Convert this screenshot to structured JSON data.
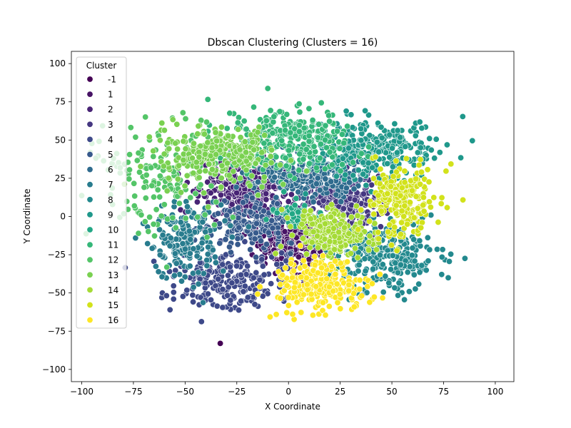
{
  "chart_data": {
    "type": "scatter",
    "title": "Dbscan Clustering (Clusters = 16)",
    "xlabel": "X Coordinate",
    "ylabel": "Y Coordinate",
    "xlim": [
      -105,
      109
    ],
    "ylim": [
      -108,
      108
    ],
    "xticks": [
      -100,
      -75,
      -50,
      -25,
      0,
      25,
      50,
      75,
      100
    ],
    "yticks": [
      -100,
      -75,
      -50,
      -25,
      0,
      25,
      50,
      75,
      100
    ],
    "grid": false,
    "legend": {
      "title": "Cluster",
      "placement": "top-left"
    },
    "series": [
      {
        "name": "-1",
        "color": "#440154",
        "approx_center": [
          -33,
          -83
        ],
        "approx_spread": [
          1,
          1
        ],
        "approx_count": 1
      },
      {
        "name": "1",
        "color": "#471365",
        "approx_center": [
          0,
          -18
        ],
        "approx_spread": [
          8,
          7
        ],
        "approx_count": 220
      },
      {
        "name": "2",
        "color": "#482475",
        "approx_center": [
          -20,
          17
        ],
        "approx_spread": [
          11,
          9
        ],
        "approx_count": 300
      },
      {
        "name": "3",
        "color": "#453781",
        "approx_center": [
          28,
          12
        ],
        "approx_spread": [
          12,
          10
        ],
        "approx_count": 260
      },
      {
        "name": "4",
        "color": "#3e4989",
        "approx_center": [
          -27,
          -42
        ],
        "approx_spread": [
          15,
          10
        ],
        "approx_count": 240
      },
      {
        "name": "5",
        "color": "#375a8c",
        "approx_center": [
          -18,
          -5
        ],
        "approx_spread": [
          10,
          8
        ],
        "approx_count": 180
      },
      {
        "name": "6",
        "color": "#2f6b8e",
        "approx_center": [
          8,
          27
        ],
        "approx_spread": [
          14,
          7
        ],
        "approx_count": 230
      },
      {
        "name": "7",
        "color": "#287c8e",
        "approx_center": [
          -50,
          -15
        ],
        "approx_spread": [
          9,
          12
        ],
        "approx_count": 190
      },
      {
        "name": "8",
        "color": "#23898e",
        "approx_center": [
          48,
          -25
        ],
        "approx_spread": [
          13,
          12
        ],
        "approx_count": 260
      },
      {
        "name": "9",
        "color": "#1f988b",
        "approx_center": [
          40,
          45
        ],
        "approx_spread": [
          14,
          10
        ],
        "approx_count": 300
      },
      {
        "name": "10",
        "color": "#22a785",
        "approx_center": [
          3,
          3
        ],
        "approx_spread": [
          5,
          4
        ],
        "approx_count": 60
      },
      {
        "name": "11",
        "color": "#35b779",
        "approx_center": [
          0,
          50
        ],
        "approx_spread": [
          16,
          10
        ],
        "approx_count": 320
      },
      {
        "name": "12",
        "color": "#54c568",
        "approx_center": [
          -62,
          25
        ],
        "approx_spread": [
          15,
          20
        ],
        "approx_count": 160
      },
      {
        "name": "13",
        "color": "#7ad151",
        "approx_center": [
          -35,
          40
        ],
        "approx_spread": [
          14,
          10
        ],
        "approx_count": 280
      },
      {
        "name": "14",
        "color": "#a5db36",
        "approx_center": [
          22,
          -10
        ],
        "approx_spread": [
          10,
          8
        ],
        "approx_count": 230
      },
      {
        "name": "15",
        "color": "#d2e21b",
        "approx_center": [
          55,
          10
        ],
        "approx_spread": [
          8,
          12
        ],
        "approx_count": 220
      },
      {
        "name": "16",
        "color": "#fde725",
        "approx_center": [
          15,
          -45
        ],
        "approx_spread": [
          11,
          8
        ],
        "approx_count": 240
      }
    ]
  }
}
